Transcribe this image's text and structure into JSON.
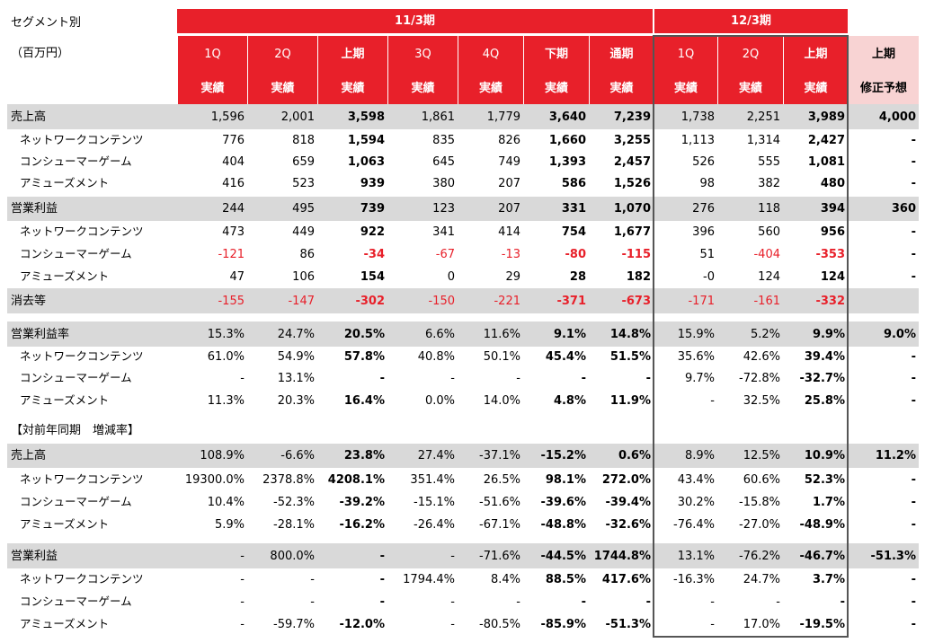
{
  "top_left": {
    "title": "セグメント別",
    "unit": "（百万円）"
  },
  "groups": [
    {
      "label": "11/3期"
    },
    {
      "label": "12/3期"
    }
  ],
  "columns": [
    {
      "period": "1Q",
      "type": "実績",
      "bold": false
    },
    {
      "period": "2Q",
      "type": "実績",
      "bold": false
    },
    {
      "period": "上期",
      "type": "実績",
      "bold": true
    },
    {
      "period": "3Q",
      "type": "実績",
      "bold": false
    },
    {
      "period": "4Q",
      "type": "実績",
      "bold": false
    },
    {
      "period": "下期",
      "type": "実績",
      "bold": true
    },
    {
      "period": "通期",
      "type": "実績",
      "bold": true
    },
    {
      "period": "1Q",
      "type": "実績",
      "bold": false
    },
    {
      "period": "2Q",
      "type": "実績",
      "bold": false
    },
    {
      "period": "上期",
      "type": "実績",
      "bold": true
    },
    {
      "period": "上期",
      "type": "修正予想",
      "bold": true
    }
  ],
  "section_label": "【対前年同期　増減率】",
  "colors": {
    "header_red": "#e8202a",
    "forecast_pink": "#f8d3d3",
    "shade_gray": "#d9d9d9",
    "negative_red": "#e8202a",
    "box_border": "#555555"
  },
  "rows": [
    {
      "label": "売上高",
      "sub": false,
      "shade": true,
      "values": [
        "1,596",
        "2,001",
        "3,598",
        "1,861",
        "1,779",
        "3,640",
        "7,239",
        "1,738",
        "2,251",
        "3,989",
        "4,000"
      ],
      "red": []
    },
    {
      "label": "ネットワークコンテンツ",
      "sub": true,
      "shade": false,
      "values": [
        "776",
        "818",
        "1,594",
        "835",
        "826",
        "1,660",
        "3,255",
        "1,113",
        "1,314",
        "2,427",
        "-"
      ],
      "red": []
    },
    {
      "label": "コンシューマーゲーム",
      "sub": true,
      "shade": false,
      "values": [
        "404",
        "659",
        "1,063",
        "645",
        "749",
        "1,393",
        "2,457",
        "526",
        "555",
        "1,081",
        "-"
      ],
      "red": []
    },
    {
      "label": "アミューズメント",
      "sub": true,
      "shade": false,
      "values": [
        "416",
        "523",
        "939",
        "380",
        "207",
        "586",
        "1,526",
        "98",
        "382",
        "480",
        "-"
      ],
      "red": []
    },
    {
      "label": "営業利益",
      "sub": false,
      "shade": true,
      "values": [
        "244",
        "495",
        "739",
        "123",
        "207",
        "331",
        "1,070",
        "276",
        "118",
        "394",
        "360"
      ],
      "red": []
    },
    {
      "label": "ネットワークコンテンツ",
      "sub": true,
      "shade": false,
      "values": [
        "473",
        "449",
        "922",
        "341",
        "414",
        "754",
        "1,677",
        "396",
        "560",
        "956",
        "-"
      ],
      "red": []
    },
    {
      "label": "コンシューマーゲーム",
      "sub": true,
      "shade": false,
      "values": [
        "-121",
        "86",
        "-34",
        "-67",
        "-13",
        "-80",
        "-115",
        "51",
        "-404",
        "-353",
        "-"
      ],
      "red": [
        0,
        2,
        3,
        4,
        5,
        6,
        8,
        9
      ]
    },
    {
      "label": "アミューズメント",
      "sub": true,
      "shade": false,
      "values": [
        "47",
        "106",
        "154",
        "0",
        "29",
        "28",
        "182",
        "-0",
        "124",
        "124",
        "-"
      ],
      "red": []
    },
    {
      "label": "消去等",
      "sub": false,
      "shade": true,
      "values": [
        "-155",
        "-147",
        "-302",
        "-150",
        "-221",
        "-371",
        "-673",
        "-171",
        "-161",
        "-332",
        ""
      ],
      "red": [
        0,
        1,
        2,
        3,
        4,
        5,
        6,
        7,
        8,
        9
      ]
    },
    {
      "label": "営業利益率",
      "sub": false,
      "shade": true,
      "values": [
        "15.3%",
        "24.7%",
        "20.5%",
        "6.6%",
        "11.6%",
        "9.1%",
        "14.8%",
        "15.9%",
        "5.2%",
        "9.9%",
        "9.0%"
      ],
      "red": []
    },
    {
      "label": "ネットワークコンテンツ",
      "sub": true,
      "shade": false,
      "values": [
        "61.0%",
        "54.9%",
        "57.8%",
        "40.8%",
        "50.1%",
        "45.4%",
        "51.5%",
        "35.6%",
        "42.6%",
        "39.4%",
        "-"
      ],
      "red": []
    },
    {
      "label": "コンシューマーゲーム",
      "sub": true,
      "shade": false,
      "values": [
        "-",
        "13.1%",
        "-",
        "-",
        "-",
        "-",
        "-",
        "9.7%",
        "-72.8%",
        "-32.7%",
        "-"
      ],
      "red": []
    },
    {
      "label": "アミューズメント",
      "sub": true,
      "shade": false,
      "values": [
        "11.3%",
        "20.3%",
        "16.4%",
        "0.0%",
        "14.0%",
        "4.8%",
        "11.9%",
        "-",
        "32.5%",
        "25.8%",
        "-"
      ],
      "red": []
    },
    {
      "label": "売上高",
      "sub": false,
      "shade": true,
      "values": [
        "108.9%",
        "-6.6%",
        "23.8%",
        "27.4%",
        "-37.1%",
        "-15.2%",
        "0.6%",
        "8.9%",
        "12.5%",
        "10.9%",
        "11.2%"
      ],
      "red": []
    },
    {
      "label": "ネットワークコンテンツ",
      "sub": true,
      "shade": false,
      "values": [
        "19300.0%",
        "2378.8%",
        "4208.1%",
        "351.4%",
        "26.5%",
        "98.1%",
        "272.0%",
        "43.4%",
        "60.6%",
        "52.3%",
        "-"
      ],
      "red": []
    },
    {
      "label": "コンシューマーゲーム",
      "sub": true,
      "shade": false,
      "values": [
        "10.4%",
        "-52.3%",
        "-39.2%",
        "-15.1%",
        "-51.6%",
        "-39.6%",
        "-39.4%",
        "30.2%",
        "-15.8%",
        "1.7%",
        "-"
      ],
      "red": []
    },
    {
      "label": "アミューズメント",
      "sub": true,
      "shade": false,
      "values": [
        "5.9%",
        "-28.1%",
        "-16.2%",
        "-26.4%",
        "-67.1%",
        "-48.8%",
        "-32.6%",
        "-76.4%",
        "-27.0%",
        "-48.9%",
        "-"
      ],
      "red": []
    },
    {
      "label": "営業利益",
      "sub": false,
      "shade": true,
      "values": [
        "-",
        "800.0%",
        "-",
        "-",
        "-71.6%",
        "-44.5%",
        "1744.8%",
        "13.1%",
        "-76.2%",
        "-46.7%",
        "-51.3%"
      ],
      "red": []
    },
    {
      "label": "ネットワークコンテンツ",
      "sub": true,
      "shade": false,
      "values": [
        "-",
        "-",
        "-",
        "1794.4%",
        "8.4%",
        "88.5%",
        "417.6%",
        "-16.3%",
        "24.7%",
        "3.7%",
        "-"
      ],
      "red": []
    },
    {
      "label": "コンシューマーゲーム",
      "sub": true,
      "shade": false,
      "values": [
        "-",
        "-",
        "-",
        "-",
        "-",
        "-",
        "-",
        "-",
        "-",
        "-",
        "-"
      ],
      "red": []
    },
    {
      "label": "アミューズメント",
      "sub": true,
      "shade": false,
      "values": [
        "-",
        "-59.7%",
        "-12.0%",
        "-",
        "-80.5%",
        "-85.9%",
        "-51.3%",
        "-",
        "17.0%",
        "-19.5%",
        "-"
      ],
      "red": []
    }
  ]
}
